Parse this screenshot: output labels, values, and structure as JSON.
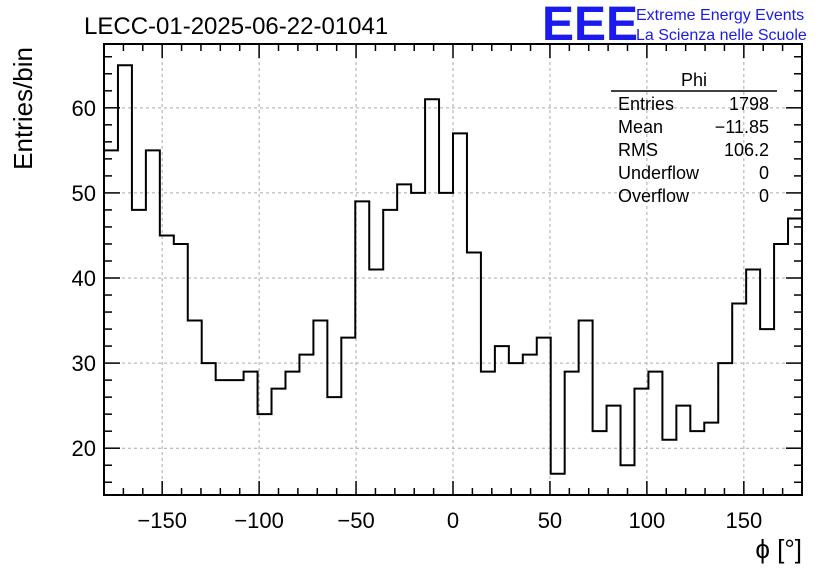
{
  "logo": {
    "letters": "EEE",
    "line1": "Extreme Energy Events",
    "line2": "La Scienza nelle Scuole",
    "color": "#1a1aee"
  },
  "chart_data": {
    "type": "histogram",
    "title": "LECC-01-2025-06-22-01041",
    "xlabel": "ϕ [°]",
    "ylabel": "Entries/bin",
    "xlim": [
      -180,
      180
    ],
    "ylim": [
      14.5,
      67.5
    ],
    "bin_width": 7.2,
    "x_ticks": [
      -150,
      -100,
      -50,
      0,
      50,
      100,
      150
    ],
    "x_tick_labels": [
      "−150",
      "−100",
      "−50",
      "0",
      "50",
      "100",
      "150"
    ],
    "y_ticks": [
      20,
      30,
      40,
      50,
      60
    ],
    "y_tick_labels": [
      "20",
      "30",
      "40",
      "50",
      "60"
    ],
    "grid": true,
    "line_color": "#000000",
    "values": [
      55,
      65,
      48,
      55,
      45,
      44,
      35,
      30,
      28,
      28,
      29,
      24,
      27,
      29,
      31,
      35,
      26,
      33,
      49,
      41,
      48,
      51,
      50,
      61,
      50,
      57,
      43,
      29,
      32,
      30,
      31,
      33,
      17,
      29,
      35,
      22,
      25,
      18,
      27,
      29,
      21,
      25,
      22,
      23,
      30,
      37,
      41,
      34,
      44,
      47
    ],
    "stats": {
      "name": "Phi",
      "rows": [
        {
          "label": "Entries",
          "value": "1798"
        },
        {
          "label": "Mean",
          "value": "−11.85"
        },
        {
          "label": "RMS",
          "value": "106.2"
        },
        {
          "label": "Underflow",
          "value": "0"
        },
        {
          "label": "Overflow",
          "value": "0"
        }
      ]
    }
  }
}
